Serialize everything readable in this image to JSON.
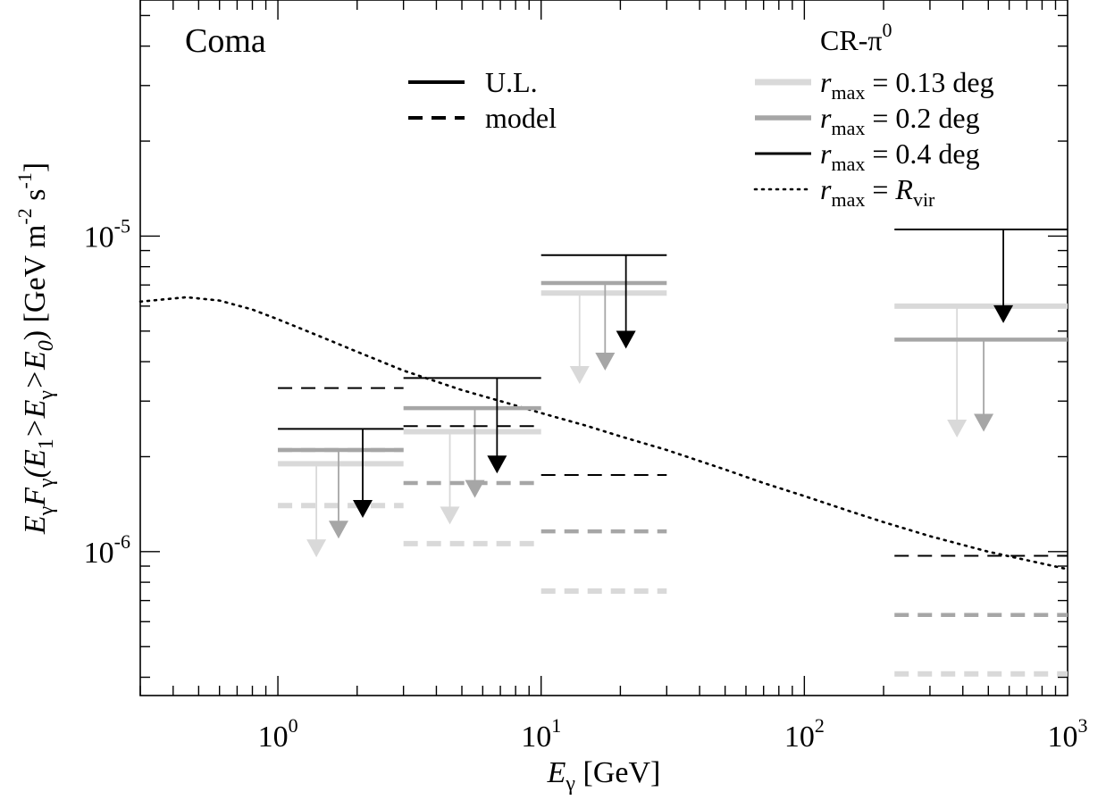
{
  "chart_data": {
    "type": "line",
    "title": "Coma",
    "xlabel": {
      "main": "E",
      "sub": "γ",
      "rest": " [GeV]"
    },
    "ylabel": {
      "parts": [
        "E",
        "γ",
        "F",
        "γ",
        "(E",
        "1",
        ">E",
        "γ",
        ">E",
        "0",
        ") [GeV m",
        "-2",
        " s",
        "-1",
        "]"
      ]
    },
    "xscale": "log",
    "yscale": "log",
    "xlim": [
      0.3,
      1000
    ],
    "ylim": [
      3.5e-07,
      5.6e-05
    ],
    "x_ticks": [
      {
        "value": 1,
        "base": "10",
        "exp": "0"
      },
      {
        "value": 10,
        "base": "10",
        "exp": "1"
      },
      {
        "value": 100,
        "base": "10",
        "exp": "2"
      },
      {
        "value": 1000,
        "base": "10",
        "exp": "3"
      }
    ],
    "y_ticks": [
      {
        "value": 1e-06,
        "base": "10",
        "exp": "-6"
      },
      {
        "value": 1e-05,
        "base": "10",
        "exp": "-5"
      }
    ],
    "colors": {
      "r013": "#d9d9d9",
      "r02": "#a6a6a6",
      "r04": "#000000",
      "rvir": "#000000"
    },
    "legend_style": {
      "title": "",
      "items": [
        {
          "label": "U.L.",
          "style": "solid"
        },
        {
          "label": "model",
          "style": "dashed"
        }
      ]
    },
    "legend_series": {
      "title_main": "CR-π",
      "title_sup": "0",
      "items": [
        {
          "key": "r013",
          "var": "r",
          "sub": "max",
          "eq": " = ",
          "value": "0.13 deg"
        },
        {
          "key": "r02",
          "var": "r",
          "sub": "max",
          "eq": " = ",
          "value": "0.2  deg"
        },
        {
          "key": "r04",
          "var": "r",
          "sub": "max",
          "eq": " = ",
          "value": "0.4  deg"
        },
        {
          "key": "rvir",
          "var": "r",
          "sub": "max",
          "eq": " = ",
          "value_var": "R",
          "value_sub": "vir"
        }
      ]
    },
    "energy_bins": [
      {
        "x0": 1,
        "x1": 3
      },
      {
        "x0": 3,
        "x1": 10
      },
      {
        "x0": 10,
        "x1": 30
      },
      {
        "x0": 220,
        "x1": 1000
      }
    ],
    "series": [
      {
        "key": "r013",
        "upper_limits": [
          1.9e-06,
          2.4e-06,
          6.6e-06,
          6e-06
        ],
        "model": [
          1.4e-06,
          1.06e-06,
          7.5e-07,
          4.1e-07
        ],
        "arrow_x": [
          1.4,
          4.5,
          14,
          380
        ],
        "arrow_tip": [
          9.6e-07,
          1.22e-06,
          3.4e-06,
          2.3e-06
        ]
      },
      {
        "key": "r02",
        "upper_limits": [
          2.1e-06,
          2.85e-06,
          7.1e-06,
          4.7e-06
        ],
        "model": [
          2.1e-06,
          1.65e-06,
          1.16e-06,
          6.3e-07
        ],
        "arrow_x": [
          1.7,
          5.6,
          17.5,
          480
        ],
        "arrow_tip": [
          1.1e-06,
          1.48e-06,
          3.75e-06,
          2.4e-06
        ]
      },
      {
        "key": "r04",
        "upper_limits": [
          2.45e-06,
          3.55e-06,
          8.7e-06,
          1.05e-05
        ],
        "model": [
          3.3e-06,
          2.5e-06,
          1.75e-06,
          9.7e-07
        ],
        "arrow_x": [
          2.1,
          6.8,
          21,
          570
        ],
        "arrow_tip": [
          1.28e-06,
          1.77e-06,
          4.4e-06,
          5.3e-06
        ]
      }
    ],
    "rvir_curve": {
      "x": [
        0.3,
        0.45,
        0.6,
        0.8,
        1.0,
        1.5,
        2,
        3,
        5,
        7,
        10,
        15,
        20,
        30,
        50,
        70,
        100,
        150,
        200,
        300,
        500,
        700,
        1000
      ],
      "y": [
        6.2e-06,
        6.4e-06,
        6.25e-06,
        5.85e-06,
        5.45e-06,
        4.75e-06,
        4.3e-06,
        3.75e-06,
        3.25e-06,
        3e-06,
        2.75e-06,
        2.5e-06,
        2.32e-06,
        2.1e-06,
        1.82e-06,
        1.65e-06,
        1.5e-06,
        1.34e-06,
        1.24e-06,
        1.12e-06,
        1e-06,
        9.4e-07,
        8.8e-07
      ]
    }
  }
}
